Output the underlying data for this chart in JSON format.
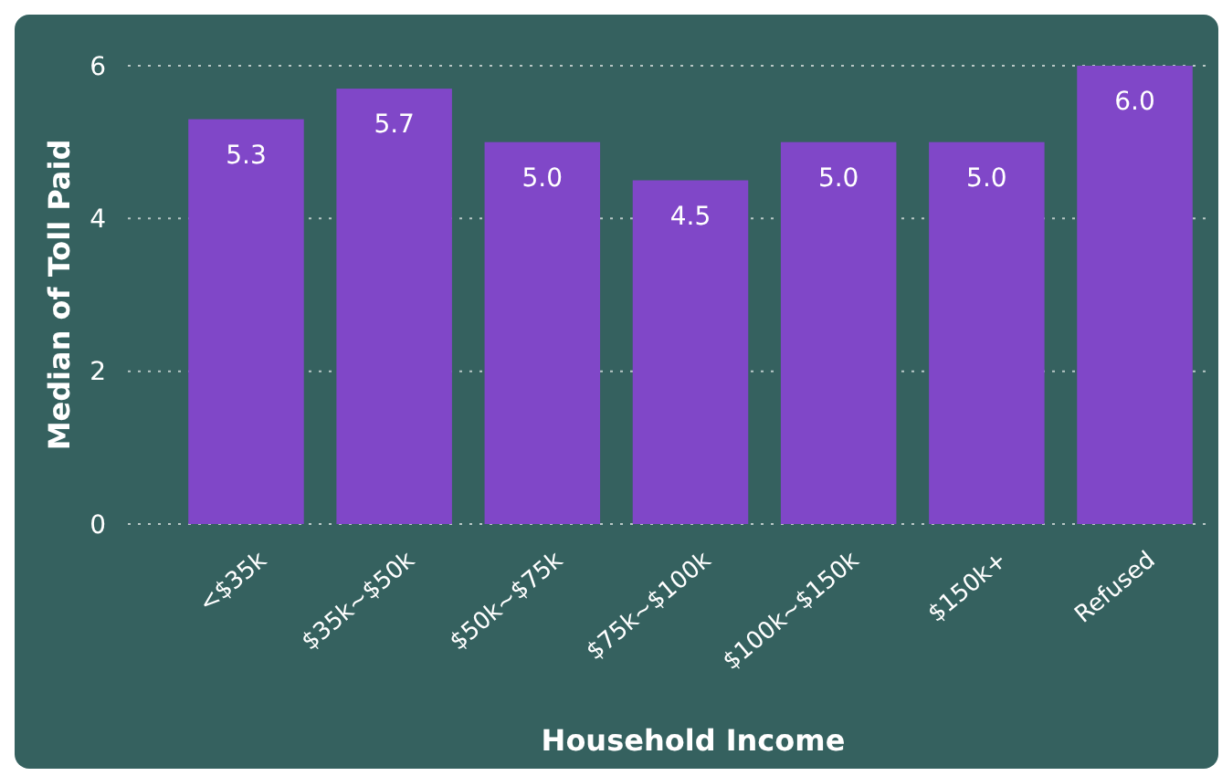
{
  "chart_data": {
    "type": "bar",
    "xlabel": "Household Income",
    "ylabel": "Median of Toll Paid",
    "categories": [
      "<$35k",
      "$35k~$50k",
      "$50k~$75k",
      "$75k~$100k",
      "$100k~$150k",
      "$150k+",
      "Refused"
    ],
    "values": [
      5.3,
      5.7,
      5.0,
      4.5,
      5.0,
      5.0,
      6.0
    ],
    "color": "#8047c8",
    "value_labels": [
      "5.3",
      "5.7",
      "5.0",
      "4.5",
      "5.0",
      "5.0",
      "6.0"
    ],
    "ylim": [
      0,
      6
    ],
    "yticks": [
      0,
      2,
      4,
      6
    ],
    "grid": "y"
  }
}
